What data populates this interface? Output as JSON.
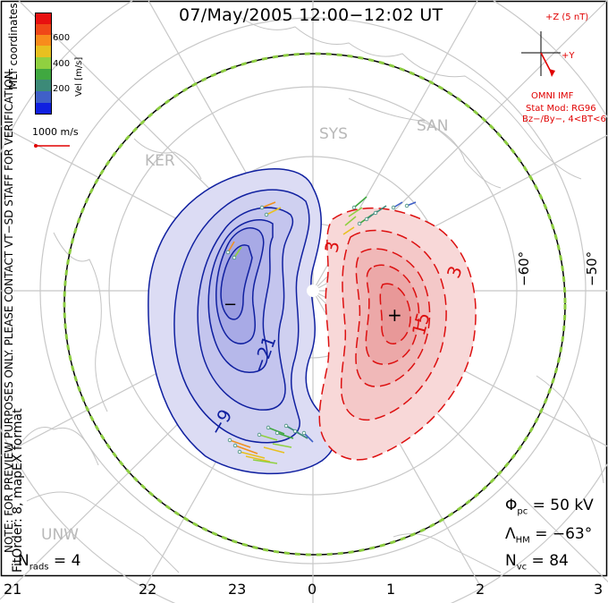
{
  "title": "07/May/2005 12:00−12:02 UT",
  "coords_label": "MLT coordinates",
  "colorbar": {
    "label": "Vel [m/s]",
    "ticks": [
      "600",
      "400",
      "200"
    ],
    "colors": [
      "#e81010",
      "#f04818",
      "#f88c1c",
      "#e8c020",
      "#90d040",
      "#40a840",
      "#3c8a78",
      "#4060c8",
      "#1020e0"
    ]
  },
  "vector_scale": "1000 m/s",
  "imf": {
    "bz_label": "+Z (5 nT)",
    "by_label": "+Y",
    "source": "OMNI IMF",
    "model": "Stat Mod: RG96",
    "condition": "Bz−/By−, 4<BT<6"
  },
  "sites": [
    "KER",
    "SYS",
    "SAN",
    "UNW"
  ],
  "lat_labels": [
    "−60°",
    "−50°"
  ],
  "contours": {
    "neg": [
      "−21",
      "−9"
    ],
    "pos": [
      "15",
      "3",
      "3"
    ],
    "min_mark": "−",
    "max_mark": "+"
  },
  "note_line1": "NOTE: FOR PREVIEW PURPOSES ONLY. PLEASE CONTACT VT−SD STAFF FOR VERIFICATION.",
  "note_line2": "FitOrder: 8, mapEX format",
  "stats": {
    "n_rads_label": "N",
    "n_rads_sub": "rads",
    "n_rads_value": "= 4",
    "phi_label": "Φ",
    "phi_sub": "pc",
    "phi_value": "= 50 kV",
    "lambda_label": "Λ",
    "lambda_sub": "HM",
    "lambda_value": "= −63°",
    "nvc_label": "N",
    "nvc_sub": "vc",
    "nvc_value": "= 84"
  },
  "mlt_ticks": [
    "21",
    "22",
    "23",
    "0",
    "1",
    "2",
    "3"
  ]
}
